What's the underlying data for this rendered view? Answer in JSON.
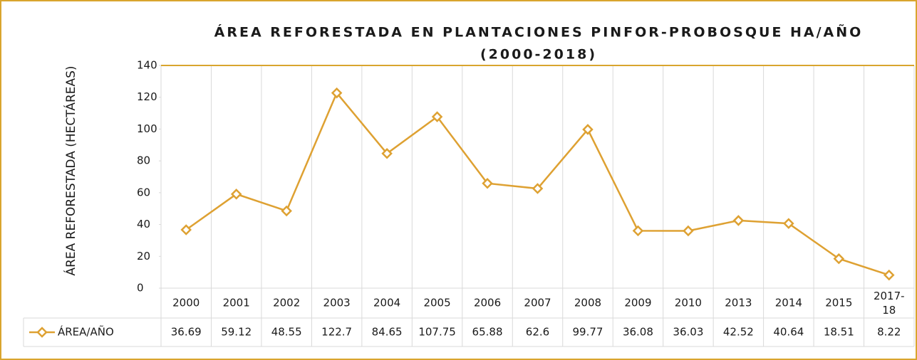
{
  "chart_data": {
    "type": "line",
    "title": [
      "ÁREA REFORESTADA EN PLANTACIONES PINFOR-PROBOSQUE HA/AÑO",
      "(2000-2018)"
    ],
    "y_label": "ÁREA REFORESTADA (HECTÁREAS)",
    "categories": [
      "2000",
      "2001",
      "2002",
      "2003",
      "2004",
      "2005",
      "2006",
      "2007",
      "2008",
      "2009",
      "2010",
      "2013",
      "2014",
      "2015",
      "2017-18"
    ],
    "series": [
      {
        "name": "ÁREA/AÑO",
        "color": "#dea132",
        "values": [
          36.69,
          59.12,
          48.55,
          122.7,
          84.65,
          107.75,
          65.88,
          62.6,
          99.77,
          36.08,
          36.03,
          42.52,
          40.64,
          18.51,
          8.22
        ]
      }
    ],
    "ylim": [
      0,
      140
    ],
    "yticks": [
      0,
      20,
      40,
      60,
      80,
      100,
      120,
      140
    ],
    "grid": true,
    "data_table": true
  }
}
